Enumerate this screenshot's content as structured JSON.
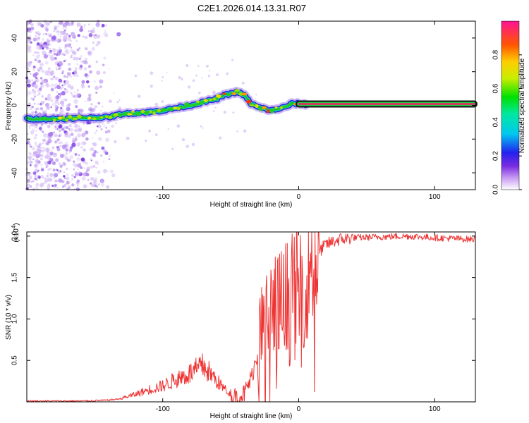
{
  "title": "C2E1.2026.014.13.31.R07",
  "chart_data": [
    {
      "type": "heatmap",
      "xlabel": "Height of straight line (km)",
      "ylabel": "Frequency (Hz)",
      "xlim": [
        -200,
        130
      ],
      "ylim": [
        -50,
        50
      ],
      "x_ticks": [
        -100,
        0,
        100
      ],
      "x_tick_labels": [
        "-100",
        "0",
        "100"
      ],
      "y_ticks": [
        -40,
        -20,
        0,
        20,
        40
      ],
      "y_tick_labels": [
        "-40",
        "-20",
        "0",
        "20",
        "40"
      ],
      "colorbar": {
        "label": "Normalized spectral amplitude",
        "range": [
          0,
          1
        ],
        "ticks": [
          0.0,
          0.2,
          0.4,
          0.6,
          0.8
        ],
        "tick_labels": [
          "0.0",
          "0.2",
          "0.4",
          "0.6",
          "0.8"
        ]
      },
      "ridge_frequency": {
        "x": [
          -200,
          -180,
          -160,
          -140,
          -130,
          -120,
          -110,
          -100,
          -90,
          -80,
          -70,
          -60,
          -55,
          -50,
          -45,
          -40,
          -35,
          -30,
          -25,
          -20,
          -15,
          -10,
          -5,
          0,
          5,
          130
        ],
        "y": [
          -8,
          -8,
          -7.5,
          -7,
          -5,
          -4.5,
          -4,
          -3,
          -1.5,
          0,
          2,
          4,
          6,
          7,
          8,
          6,
          1,
          -1,
          -2,
          -3,
          -2,
          -1,
          1,
          1,
          0.5,
          0.5
        ]
      }
    },
    {
      "type": "line",
      "xlabel": "Height of straight line (km)",
      "ylabel": "SNR (10 * v/v)",
      "y_scale_label": "(x10",
      "y_scale_exp": "4",
      "y_scale_close": ")",
      "xlim": [
        -200,
        130
      ],
      "ylim": [
        0,
        2.05
      ],
      "x_ticks": [
        -100,
        0,
        100
      ],
      "x_tick_labels": [
        "-100",
        "0",
        "100"
      ],
      "y_ticks": [
        0.5,
        1.0,
        1.5,
        2.0
      ],
      "y_tick_labels": [
        "0.5",
        "1.0",
        "1.5",
        "2.0"
      ],
      "series": [
        {
          "name": "SNR",
          "color": "#ee3333",
          "x": [
            -200,
            -180,
            -160,
            -140,
            -130,
            -120,
            -110,
            -100,
            -90,
            -80,
            -70,
            -60,
            -50,
            -45,
            -40,
            -35,
            -30,
            -25,
            -20,
            -15,
            -10,
            -5,
            0,
            5,
            10,
            20,
            30,
            40,
            60,
            80,
            100,
            115,
            130
          ],
          "y": [
            0.01,
            0.01,
            0.01,
            0.02,
            0.04,
            0.08,
            0.13,
            0.17,
            0.24,
            0.3,
            0.38,
            0.22,
            0.07,
            0.05,
            0.1,
            0.28,
            0.6,
            0.95,
            1.05,
            1.1,
            1.18,
            1.25,
            1.35,
            1.55,
            1.72,
            1.9,
            1.96,
            1.98,
            1.99,
            2.0,
            1.98,
            1.97,
            1.96
          ]
        }
      ]
    }
  ],
  "colors": {
    "line": "#ee3333",
    "axis": "#000000"
  }
}
